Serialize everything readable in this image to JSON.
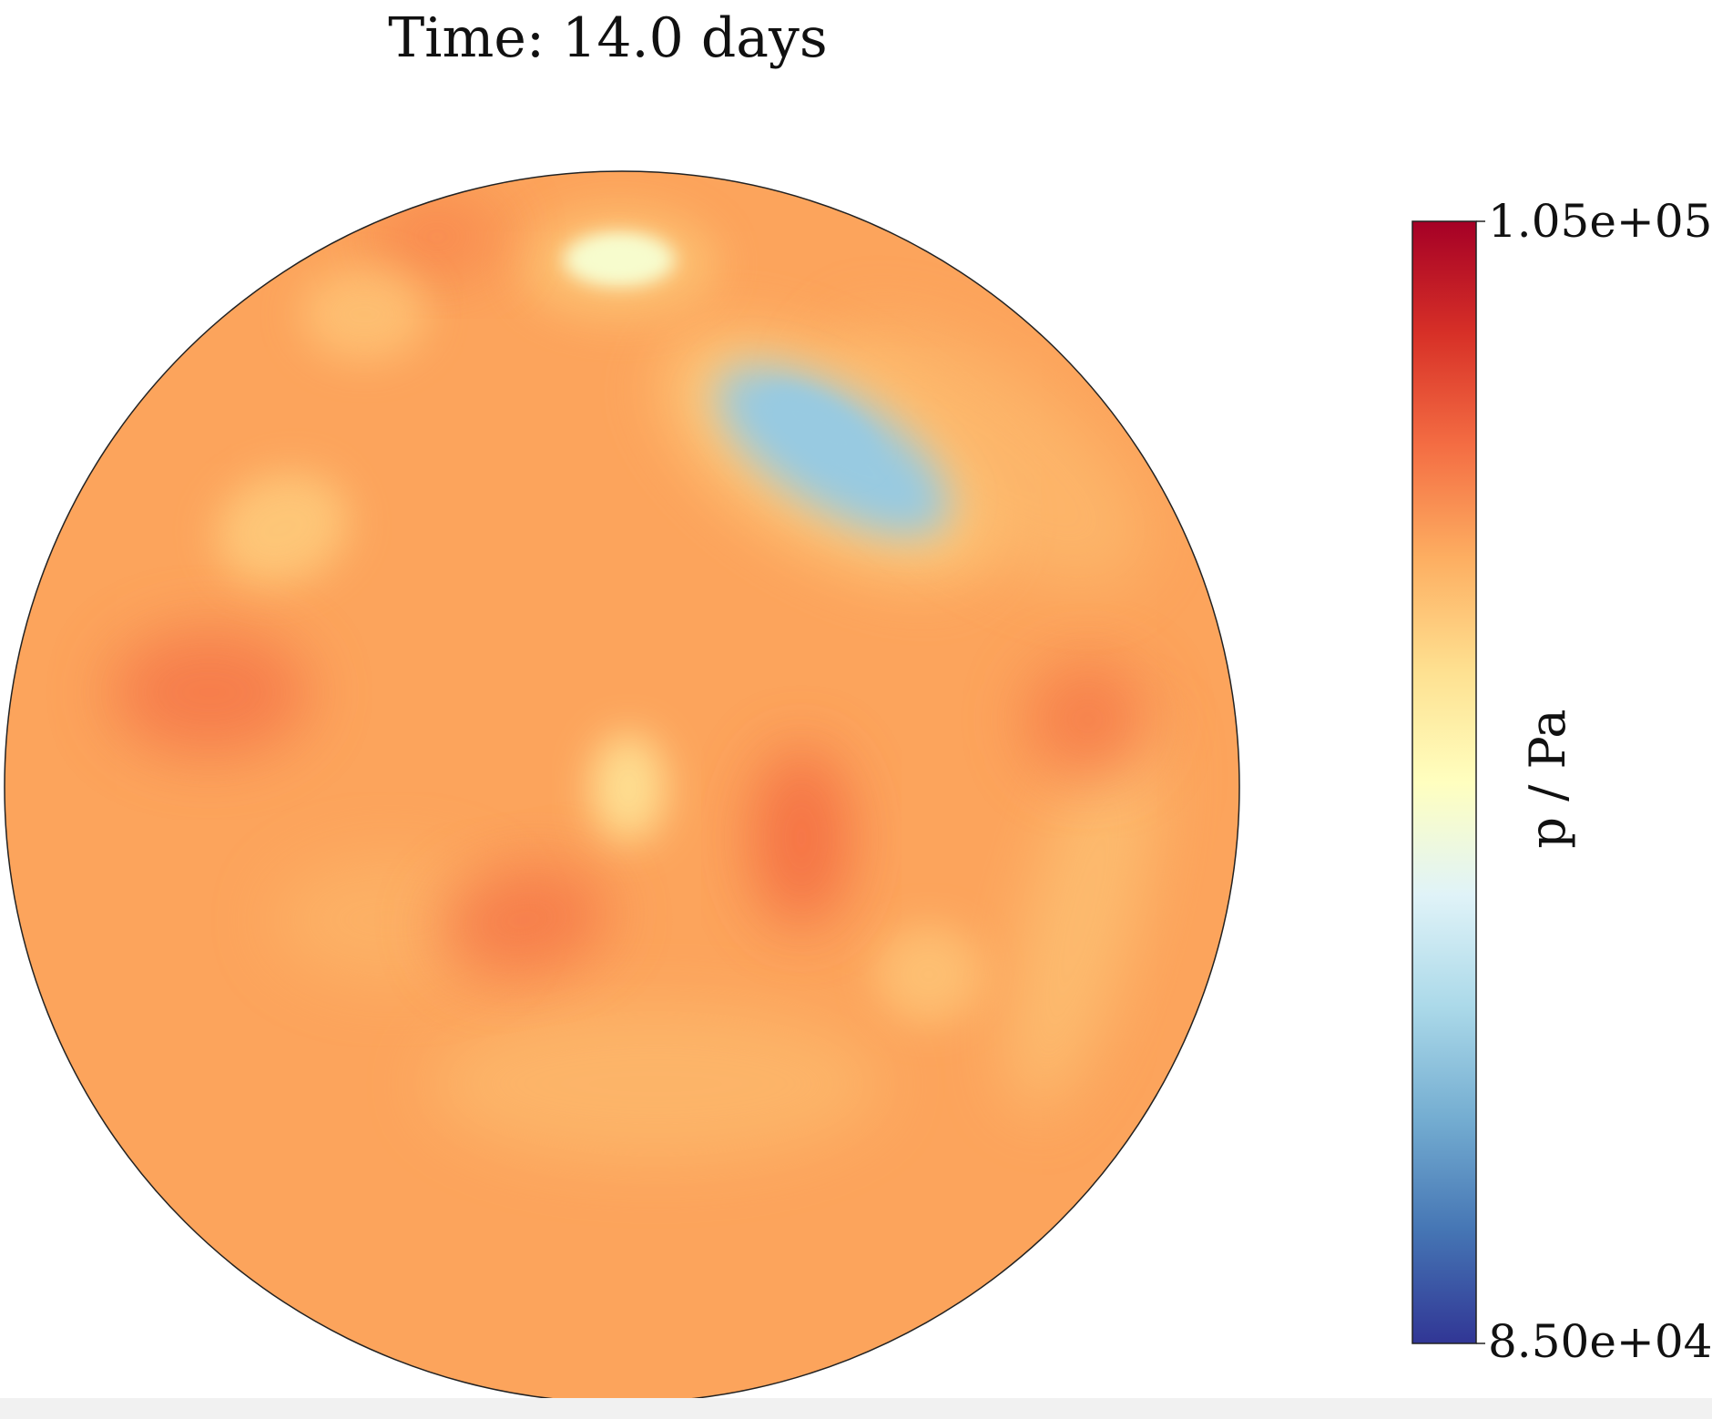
{
  "chart_data": {
    "type": "heatmap",
    "title": "Time: 14.0 days",
    "colorbar": {
      "label": "p / Pa",
      "ticks": [
        "1.05e+05",
        "8.50e+04"
      ],
      "min": 85000,
      "max": 105000,
      "colormap": [
        "#a50026",
        "#d73027",
        "#f46d43",
        "#fdae61",
        "#fee090",
        "#ffffbf",
        "#e0f3f8",
        "#abd9e9",
        "#74add1",
        "#4575b4",
        "#313695"
      ]
    },
    "field": {
      "background_value": 99300,
      "features": [
        {
          "kind": "low",
          "value": 90300
        },
        {
          "kind": "low",
          "value": 94500
        },
        {
          "kind": "low",
          "value": 96700
        },
        {
          "kind": "high",
          "value": 101000
        },
        {
          "kind": "high",
          "value": 100600
        },
        {
          "kind": "high",
          "value": 100700
        },
        {
          "kind": "high",
          "value": 100800
        },
        {
          "kind": "high",
          "value": 100400
        },
        {
          "kind": "moderate",
          "value": 97800
        },
        {
          "kind": "moderate",
          "value": 98000
        },
        {
          "kind": "moderate",
          "value": 98200
        }
      ]
    }
  }
}
